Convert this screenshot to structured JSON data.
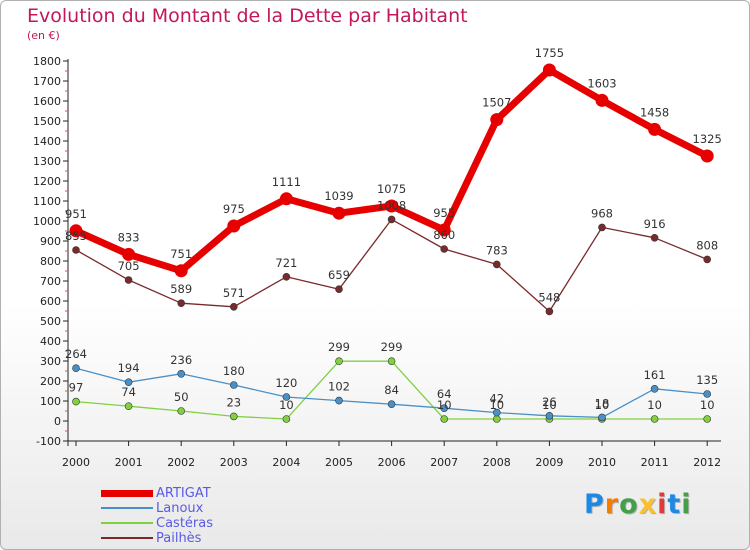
{
  "chart_data": {
    "type": "line",
    "title": "Evolution du Montant de la Dette par Habitant",
    "subtitle": "(en €)",
    "xlabel": "",
    "ylabel": "",
    "ylim": [
      -100,
      1800
    ],
    "yticks": [
      "-100",
      "0",
      "100",
      "200",
      "300",
      "400",
      "500",
      "600",
      "700",
      "800",
      "900",
      "1000",
      "1100",
      "1200",
      "1300",
      "1400",
      "1500",
      "1600",
      "1700",
      "1800"
    ],
    "x": [
      "2000",
      "2001",
      "2002",
      "2003",
      "2004",
      "2005",
      "2006",
      "2007",
      "2008",
      "2009",
      "2010",
      "2011",
      "2012"
    ],
    "grid": false,
    "legend_position": "bottom-left",
    "series": [
      {
        "name": "ARTIGAT",
        "color": "#e60000",
        "values": [
          951,
          833,
          751,
          975,
          1111,
          1039,
          1075,
          955,
          1507,
          1755,
          1603,
          1458,
          1325
        ]
      },
      {
        "name": "Lanoux",
        "color": "#4a90c8",
        "values": [
          264,
          194,
          236,
          180,
          120,
          102,
          84,
          64,
          42,
          26,
          18,
          161,
          135
        ]
      },
      {
        "name": "Castéras",
        "color": "#80d040",
        "values": [
          97,
          74,
          50,
          23,
          10,
          299,
          299,
          10,
          10,
          10,
          10,
          10,
          10
        ]
      },
      {
        "name": "Pailhès",
        "color": "#7a2a2a",
        "values": [
          855,
          705,
          589,
          571,
          721,
          659,
          1008,
          860,
          783,
          548,
          968,
          916,
          808
        ]
      }
    ]
  },
  "brand": {
    "letters": [
      "P",
      "r",
      "o",
      "x",
      "i",
      "t",
      "i"
    ],
    "colors": [
      "#1e88e5",
      "#f57c00",
      "#43a047",
      "#fbc02d",
      "#e53935",
      "#1e88e5",
      "#43a047"
    ]
  }
}
